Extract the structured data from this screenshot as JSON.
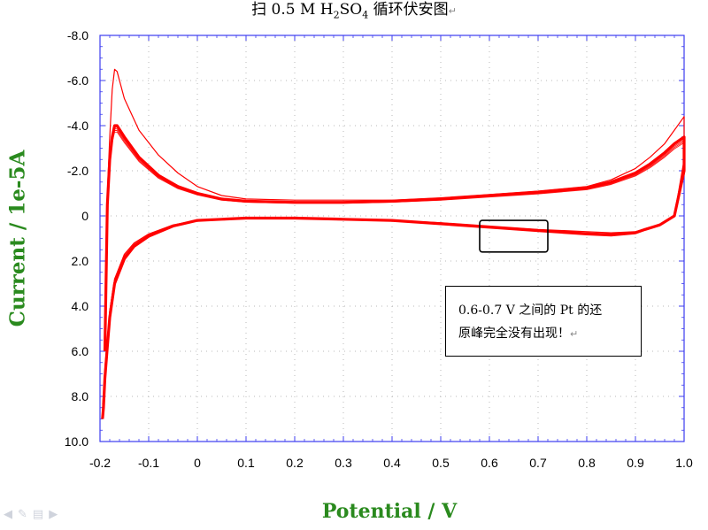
{
  "title": {
    "prefix": "扫 0.5 M H",
    "sub1": "2",
    "mid": "SO",
    "sub2": "4",
    "suffix": " 循环伏安图"
  },
  "annotation": {
    "line1": "0.6-0.7 V 之间的 Pt 的还",
    "line2": "原峰完全没有出现！"
  },
  "colors": {
    "curve": "#ff0000",
    "axis": "#3d3df0",
    "label": "#2a8a1e",
    "grid": "#b8b8b8"
  },
  "icons": [
    "back-arrow-icon",
    "pen-icon",
    "menu-icon",
    "forward-arrow-icon"
  ],
  "chart_data": {
    "type": "line",
    "xlabel": "Potential / V",
    "ylabel": "Current / 1e-5A",
    "xlim": [
      -0.2,
      1.0
    ],
    "ylim": [
      -8.0,
      10.0
    ],
    "y_inverted": true,
    "grid": true,
    "xticks": [
      "-0.2",
      "-0.1",
      "0",
      "0.1",
      "0.2",
      "0.3",
      "0.4",
      "0.5",
      "0.6",
      "0.7",
      "0.8",
      "0.9",
      "1.0"
    ],
    "yticks": [
      "-8.0",
      "-6.0",
      "-4.0",
      "-2.0",
      "0",
      "2.0",
      "4.0",
      "6.0",
      "8.0",
      "10.0"
    ],
    "highlight_box": {
      "x": [
        0.58,
        0.72
      ],
      "y": [
        0.2,
        1.6
      ]
    },
    "series": [
      {
        "x": [
          -0.19,
          -0.185,
          -0.18,
          -0.175,
          -0.17,
          -0.165,
          -0.15,
          -0.12,
          -0.08,
          -0.04,
          0.0,
          0.05,
          0.1,
          0.2,
          0.3,
          0.4,
          0.5,
          0.6,
          0.7,
          0.8,
          0.85,
          0.9,
          0.93,
          0.96,
          0.98,
          1.0,
          1.0,
          0.98,
          0.95,
          0.92,
          0.9,
          0.85,
          0.8,
          0.7,
          0.6,
          0.5,
          0.4,
          0.3,
          0.2,
          0.1,
          0.05,
          0.0,
          -0.05,
          -0.1,
          -0.13,
          -0.15,
          -0.17,
          -0.18,
          -0.185,
          -0.19,
          -0.193,
          -0.195
        ],
        "y": [
          6.0,
          -1.0,
          -3.5,
          -5.6,
          -6.5,
          -6.4,
          -5.2,
          -3.8,
          -2.7,
          -1.9,
          -1.3,
          -0.9,
          -0.75,
          -0.7,
          -0.7,
          -0.7,
          -0.8,
          -0.95,
          -1.1,
          -1.3,
          -1.6,
          -2.1,
          -2.6,
          -3.2,
          -3.8,
          -4.4,
          -2.5,
          0.0,
          0.4,
          0.6,
          0.7,
          0.75,
          0.7,
          0.6,
          0.45,
          0.3,
          0.2,
          0.15,
          0.1,
          0.1,
          0.15,
          0.2,
          0.4,
          0.8,
          1.2,
          1.7,
          2.8,
          4.2,
          5.5,
          7.0,
          8.5,
          9.0
        ]
      },
      {
        "x": [
          -0.19,
          -0.185,
          -0.18,
          -0.175,
          -0.17,
          -0.165,
          -0.15,
          -0.12,
          -0.08,
          -0.04,
          0.0,
          0.05,
          0.1,
          0.2,
          0.3,
          0.4,
          0.5,
          0.6,
          0.7,
          0.8,
          0.85,
          0.9,
          0.93,
          0.96,
          0.98,
          1.0,
          1.0,
          0.98,
          0.95,
          0.92,
          0.9,
          0.85,
          0.8,
          0.7,
          0.6,
          0.5,
          0.4,
          0.3,
          0.2,
          0.1,
          0.05,
          0.0,
          -0.05,
          -0.1,
          -0.13,
          -0.15,
          -0.17,
          -0.18,
          -0.185,
          -0.19,
          -0.193,
          -0.195
        ],
        "y": [
          6.0,
          -0.5,
          -2.5,
          -3.5,
          -4.0,
          -4.0,
          -3.5,
          -2.6,
          -1.8,
          -1.3,
          -1.0,
          -0.75,
          -0.65,
          -0.6,
          -0.6,
          -0.65,
          -0.75,
          -0.9,
          -1.05,
          -1.25,
          -1.5,
          -1.9,
          -2.3,
          -2.8,
          -3.2,
          -3.5,
          -2.0,
          0.0,
          0.4,
          0.6,
          0.75,
          0.85,
          0.8,
          0.65,
          0.5,
          0.35,
          0.2,
          0.15,
          0.1,
          0.1,
          0.15,
          0.2,
          0.45,
          0.9,
          1.35,
          1.9,
          3.0,
          4.5,
          5.8,
          7.2,
          8.5,
          9.0
        ]
      }
    ]
  }
}
